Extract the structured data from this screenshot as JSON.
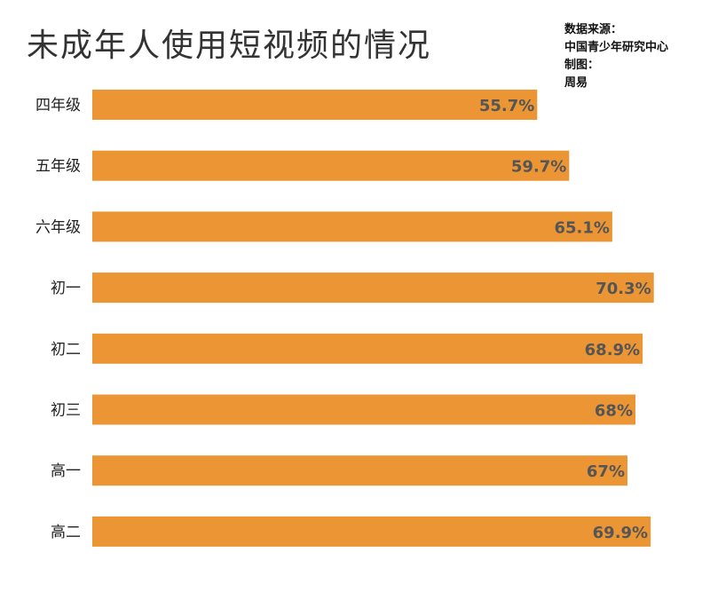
{
  "chart_data": {
    "type": "bar",
    "orientation": "horizontal",
    "title": "未成年人使用短视频的情况",
    "categories": [
      "四年级",
      "五年级",
      "六年级",
      "初一",
      "初二",
      "初三",
      "高一",
      "高二"
    ],
    "values": [
      55.7,
      59.7,
      65.1,
      70.3,
      68.9,
      68,
      67,
      69.9
    ],
    "value_labels": [
      "55.7%",
      "59.7%",
      "65.1%",
      "70.3%",
      "68.9%",
      "68%",
      "67%",
      "69.9%"
    ],
    "bar_color": "#EC9535",
    "xlim": [
      0,
      100
    ],
    "grid": false,
    "legend": "none"
  },
  "source": {
    "label": "数据来源：",
    "value": "中国青少年研究中心",
    "credit_label": "制图：",
    "credit_value": "周易"
  }
}
